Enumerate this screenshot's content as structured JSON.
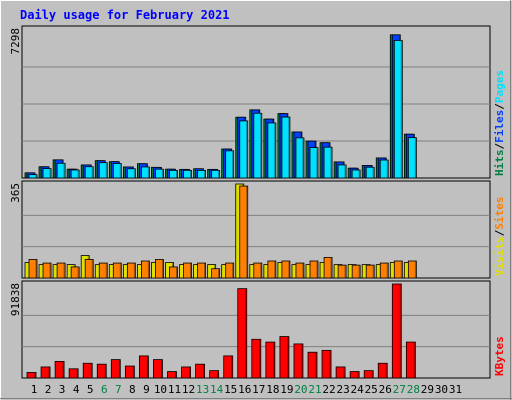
{
  "chart_data": [
    {
      "type": "bar",
      "title": "Daily usage for February 2021",
      "panel": "top",
      "ymax_label": "7298",
      "ylim": [
        0,
        7298
      ],
      "right_labels": [
        {
          "text": "Hits",
          "color": "#008040"
        },
        {
          "text": "/",
          "color": "#000000"
        },
        {
          "text": "Files",
          "color": "#0040ff"
        },
        {
          "text": "/",
          "color": "#000000"
        },
        {
          "text": "Pages",
          "color": "#00e0ff"
        }
      ],
      "series": [
        {
          "name": "Hits",
          "color": "#008040",
          "values": [
            255,
            555,
            895,
            435,
            645,
            855,
            805,
            545,
            705,
            525,
            435,
            425,
            455,
            425,
            1430,
            2995,
            3360,
            2905,
            3175,
            2270,
            1820,
            1740,
            795,
            485,
            620,
            990,
            7060,
            2160
          ]
        },
        {
          "name": "Files",
          "color": "#0040ff",
          "values": [
            255,
            555,
            895,
            435,
            645,
            855,
            805,
            545,
            705,
            525,
            435,
            425,
            455,
            425,
            1430,
            2995,
            3360,
            2905,
            3175,
            2270,
            1820,
            1740,
            795,
            485,
            620,
            990,
            7060,
            2160
          ]
        },
        {
          "name": "Pages",
          "color": "#00e0ff",
          "values": [
            165,
            465,
            725,
            395,
            555,
            755,
            715,
            455,
            545,
            435,
            375,
            375,
            375,
            375,
            1340,
            2815,
            3190,
            2715,
            3005,
            1980,
            1500,
            1520,
            645,
            395,
            530,
            885,
            6780,
            1990
          ]
        }
      ]
    },
    {
      "type": "bar",
      "panel": "middle",
      "ymax_label": "365",
      "ylim": [
        0,
        365
      ],
      "right_labels": [
        {
          "text": "Visits",
          "color": "#e0e000"
        },
        {
          "text": "/",
          "color": "#000000"
        },
        {
          "text": "Sites",
          "color": "#ff8000"
        }
      ],
      "series": [
        {
          "name": "Visits",
          "color": "#e0e000",
          "values": [
            60,
            52,
            52,
            52,
            87,
            52,
            52,
            52,
            52,
            60,
            60,
            52,
            52,
            52,
            52,
            365,
            52,
            52,
            60,
            52,
            52,
            60,
            52,
            52,
            52,
            52,
            60,
            60
          ]
        },
        {
          "name": "Sites",
          "color": "#ff8000",
          "values": [
            72,
            58,
            58,
            43,
            72,
            58,
            58,
            58,
            66,
            72,
            43,
            58,
            58,
            36,
            58,
            357,
            58,
            66,
            66,
            58,
            66,
            80,
            50,
            50,
            50,
            58,
            66,
            66
          ]
        }
      ]
    },
    {
      "type": "bar",
      "panel": "bottom",
      "ymax_label": "91838",
      "ylim": [
        0,
        91838
      ],
      "right_labels": [
        {
          "text": "KBytes",
          "color": "#ff0000"
        }
      ],
      "series": [
        {
          "name": "KBytes",
          "color": "#ff0000",
          "values": [
            5400,
            10800,
            16200,
            9000,
            14400,
            13500,
            18000,
            11700,
            21600,
            18000,
            6300,
            10800,
            13500,
            7200,
            21600,
            87300,
            37800,
            35100,
            40500,
            33300,
            25200,
            27000,
            10800,
            6300,
            7200,
            14400,
            91838,
            35100
          ]
        }
      ]
    }
  ],
  "x_days": [
    {
      "label": "1",
      "weekend": false
    },
    {
      "label": "2",
      "weekend": false
    },
    {
      "label": "3",
      "weekend": false
    },
    {
      "label": "4",
      "weekend": false
    },
    {
      "label": "5",
      "weekend": false
    },
    {
      "label": "6",
      "weekend": true
    },
    {
      "label": "7",
      "weekend": true
    },
    {
      "label": "8",
      "weekend": false
    },
    {
      "label": "9",
      "weekend": false
    },
    {
      "label": "10",
      "weekend": false
    },
    {
      "label": "11",
      "weekend": false
    },
    {
      "label": "12",
      "weekend": false
    },
    {
      "label": "13",
      "weekend": true
    },
    {
      "label": "14",
      "weekend": true
    },
    {
      "label": "15",
      "weekend": false
    },
    {
      "label": "16",
      "weekend": false
    },
    {
      "label": "17",
      "weekend": false
    },
    {
      "label": "18",
      "weekend": false
    },
    {
      "label": "19",
      "weekend": false
    },
    {
      "label": "20",
      "weekend": true
    },
    {
      "label": "21",
      "weekend": true
    },
    {
      "label": "22",
      "weekend": false
    },
    {
      "label": "23",
      "weekend": false
    },
    {
      "label": "24",
      "weekend": false
    },
    {
      "label": "25",
      "weekend": false
    },
    {
      "label": "26",
      "weekend": false
    },
    {
      "label": "27",
      "weekend": true
    },
    {
      "label": "28",
      "weekend": true
    },
    {
      "label": "29",
      "weekend": false
    },
    {
      "label": "30",
      "weekend": false
    },
    {
      "label": "31",
      "weekend": false
    }
  ],
  "colors": {
    "weekday": "#000000",
    "weekend": "#008040",
    "title": "#0000ff",
    "panel_bg": "#c0c0c0",
    "grid": "#808080"
  }
}
